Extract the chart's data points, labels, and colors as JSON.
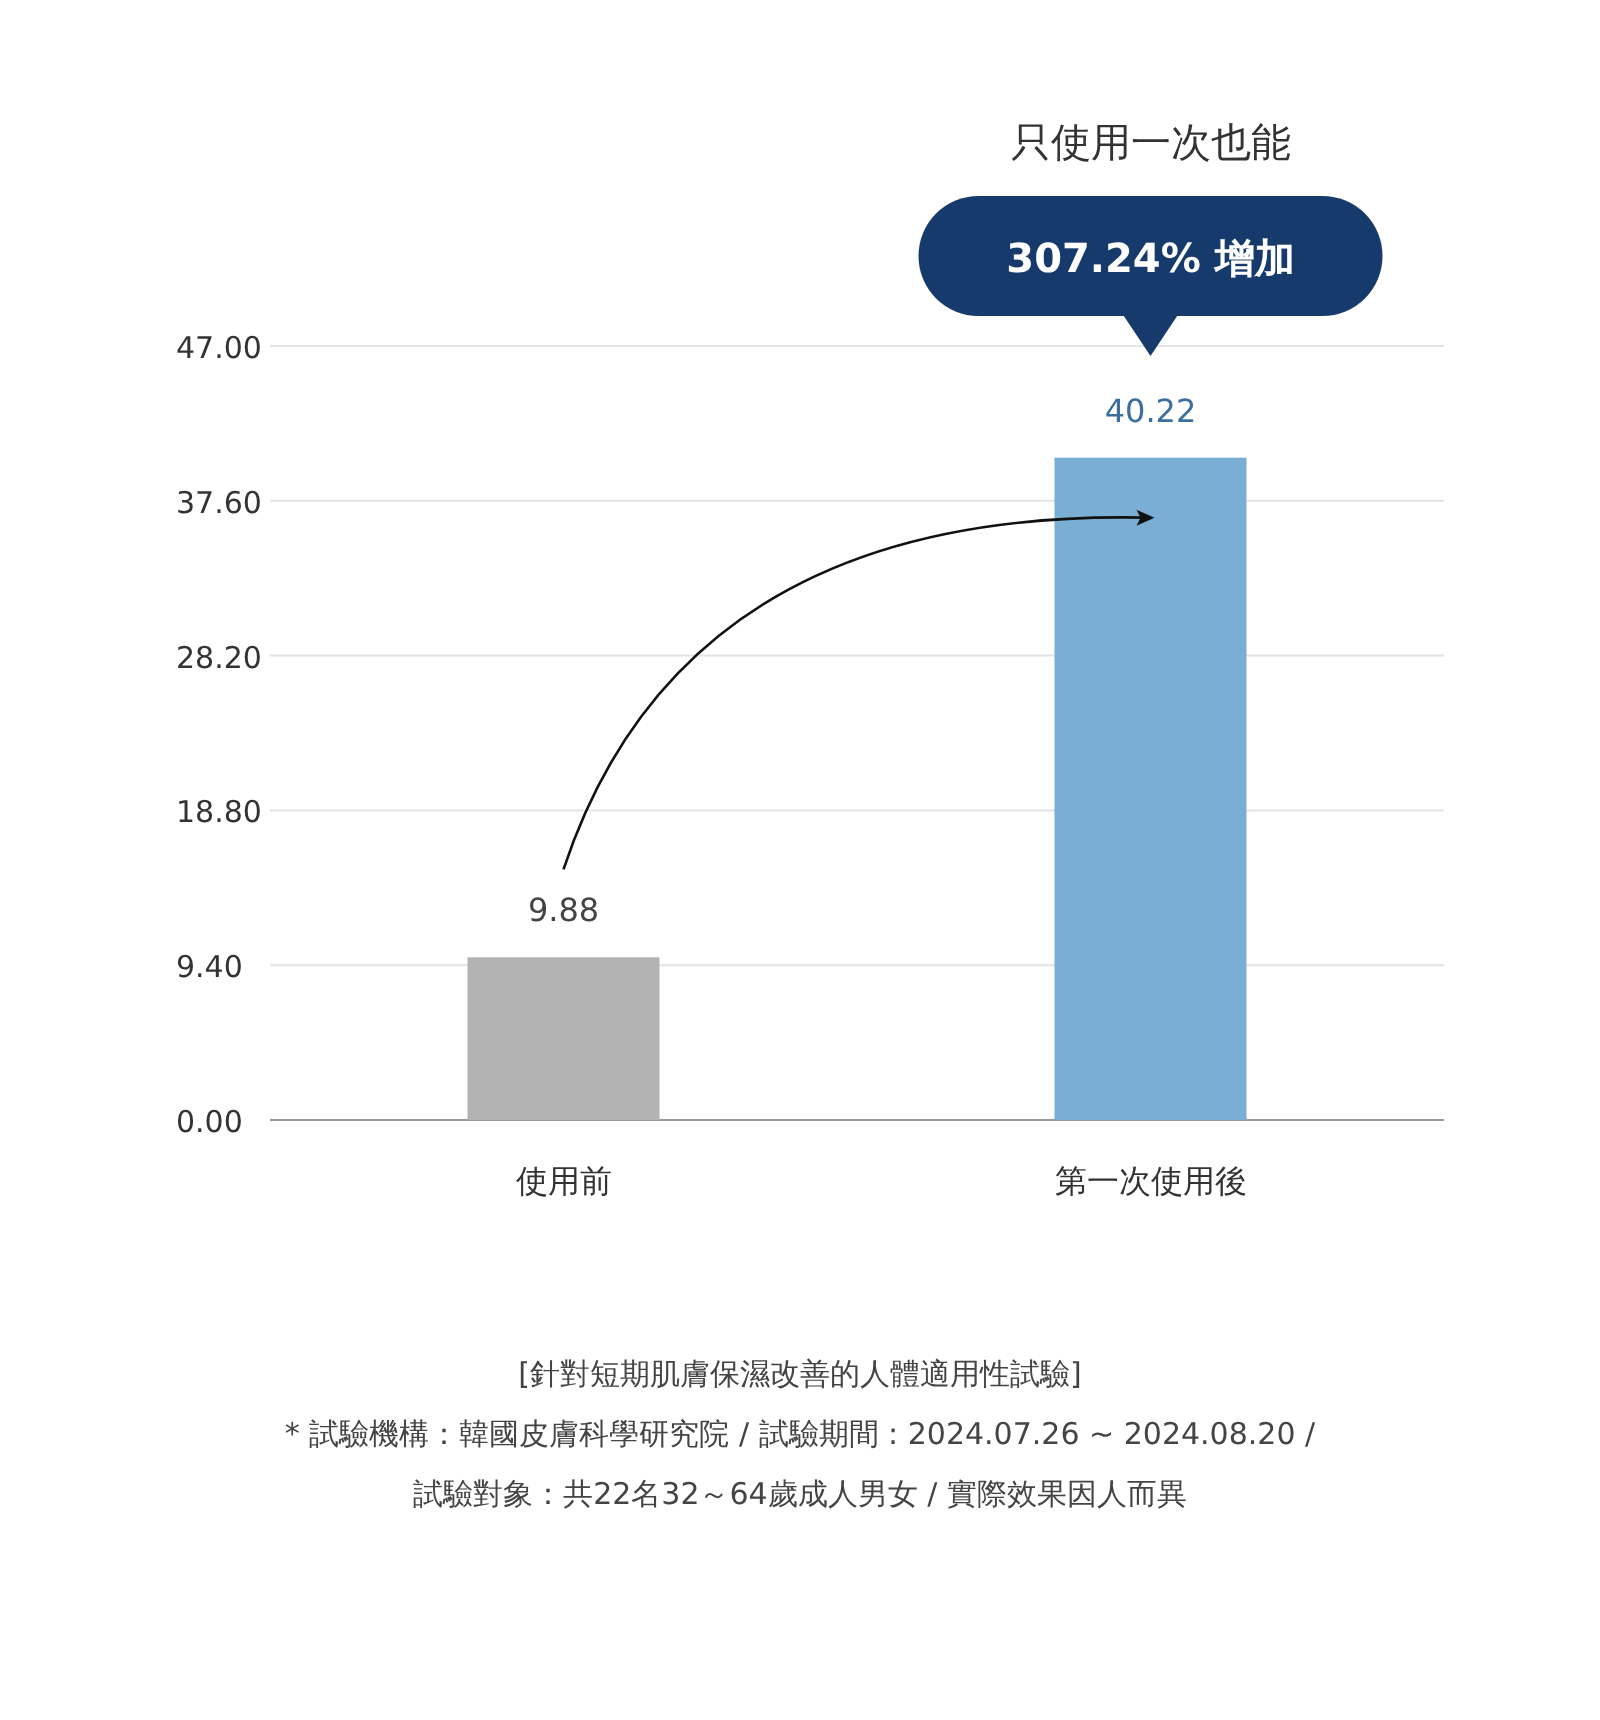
{
  "chart_data": {
    "type": "bar",
    "categories": [
      "使用前",
      "第一次使用後"
    ],
    "values": [
      9.88,
      40.22
    ],
    "colors": [
      "#b3b3b3",
      "#7aaed4"
    ],
    "ylim": [
      0,
      47
    ],
    "yticks": [
      {
        "value": 0,
        "label": "0.00"
      },
      {
        "value": 9.4,
        "label": "9.40"
      },
      {
        "value": 18.8,
        "label": "18.80"
      },
      {
        "value": 28.2,
        "label": "28.20"
      },
      {
        "value": 37.6,
        "label": "37.60"
      },
      {
        "value": 47,
        "label": "47.00"
      }
    ],
    "grid": "y",
    "data_labels": true,
    "annotations": [
      "只使用一次也能",
      "307.24% 增加",
      "[針對短期肌膚保濕改善的人體適用性試驗]",
      "* 試驗機構：韓國皮膚科學研究院 / 試驗期間 : 2024.07.26 ~ 2024.08.20 /",
      "試驗對象：共22名32～64歲成人男女 / 實際效果因人而異"
    ]
  }
}
